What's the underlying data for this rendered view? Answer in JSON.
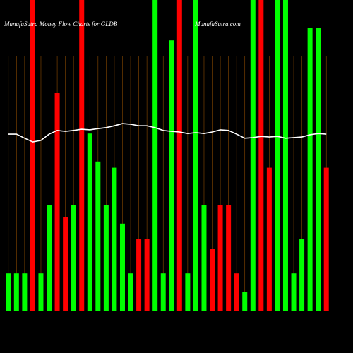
{
  "chart_data": {
    "type": "bar-line",
    "title": "MunafaSutra  Money Flow  Charts for GLDB",
    "source": "MunafaSutra.com",
    "categories": [
      null,
      null,
      null,
      null,
      null,
      null,
      null,
      null,
      null,
      null,
      null,
      null,
      null,
      null,
      null,
      null,
      null,
      null,
      null,
      null,
      null,
      null,
      null,
      null,
      null,
      null,
      null,
      null,
      null,
      null,
      null,
      null,
      null,
      null,
      null,
      null,
      null,
      null,
      null,
      null
    ],
    "ylim": [
      0,
      100
    ],
    "grid_color": "#8a4a00",
    "series": [
      {
        "type": "bar",
        "values": [
          12,
          12,
          12,
          100,
          12,
          34,
          70,
          30,
          34,
          100,
          57,
          48,
          34,
          46,
          28,
          12,
          23,
          23,
          100,
          12,
          87,
          100,
          12,
          100,
          34,
          20,
          34,
          34,
          12,
          6,
          100,
          100,
          46,
          100,
          100,
          12,
          23,
          91,
          91,
          46
        ],
        "colors": [
          "#00ff00",
          "#00ff00",
          "#00ff00",
          "#ff0000",
          "#00ff00",
          "#00ff00",
          "#ff0000",
          "#ff0000",
          "#00ff00",
          "#ff0000",
          "#00ff00",
          "#00ff00",
          "#00ff00",
          "#00ff00",
          "#00ff00",
          "#00ff00",
          "#ff0000",
          "#ff0000",
          "#00ff00",
          "#00ff00",
          "#00ff00",
          "#ff0000",
          "#00ff00",
          "#00ff00",
          "#00ff00",
          "#ff0000",
          "#ff0000",
          "#ff0000",
          "#ff0000",
          "#00ff00",
          "#00ff00",
          "#ff0000",
          "#ff0000",
          "#00ff00",
          "#00ff00",
          "#00ff00",
          "#00ff00",
          "#00ff00",
          "#00ff00",
          "#ff0000"
        ]
      },
      {
        "type": "line",
        "color": "#ffffff",
        "values": [
          56.8,
          56.8,
          55.5,
          54.3,
          54.8,
          56.8,
          58.0,
          57.7,
          58.0,
          58.4,
          58.2,
          58.6,
          58.9,
          59.5,
          60.2,
          60.0,
          59.5,
          59.5,
          58.9,
          58.0,
          57.7,
          57.5,
          57.0,
          57.3,
          57.0,
          57.5,
          58.2,
          58.0,
          56.8,
          55.5,
          55.7,
          56.1,
          55.9,
          56.1,
          55.5,
          55.7,
          55.9,
          56.6,
          57.0,
          56.8
        ]
      }
    ]
  }
}
